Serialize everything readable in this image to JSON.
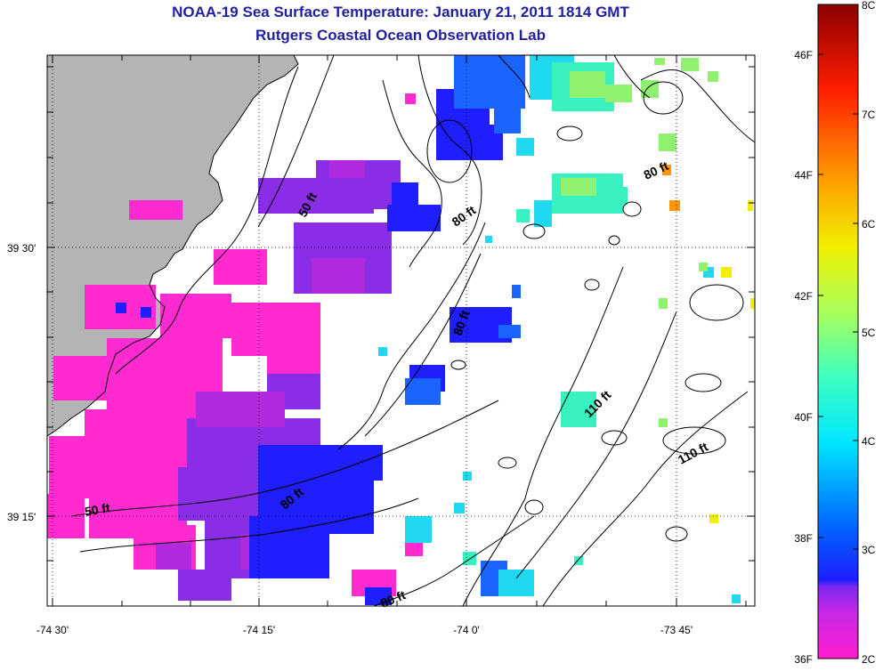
{
  "header": {
    "title": "NOAA-19 Sea Surface Temperature:  January 21, 2011 1814 GMT",
    "subtitle": "Rutgers Coastal Ocean Observation Lab"
  },
  "axes": {
    "x_ticks": [
      "-74 30'",
      "-74 15'",
      "-74 0'",
      "-73 45'"
    ],
    "y_ticks": [
      "39 30'",
      "39 15'"
    ]
  },
  "contours": [
    "50 ft",
    "80 ft",
    "80 ft",
    "80 ft",
    "110 ft",
    "110 ft",
    "50 ft",
    "80 ft",
    "80 ft"
  ],
  "colorbar": {
    "f_labels": [
      "46F",
      "44F",
      "42F",
      "40F",
      "38F",
      "36F"
    ],
    "c_labels": [
      "8C",
      "7C",
      "6C",
      "5C",
      "4C",
      "3C",
      "2C"
    ]
  },
  "colors": {
    "land": "#b4b4b4",
    "title": "#1f1fa0"
  }
}
